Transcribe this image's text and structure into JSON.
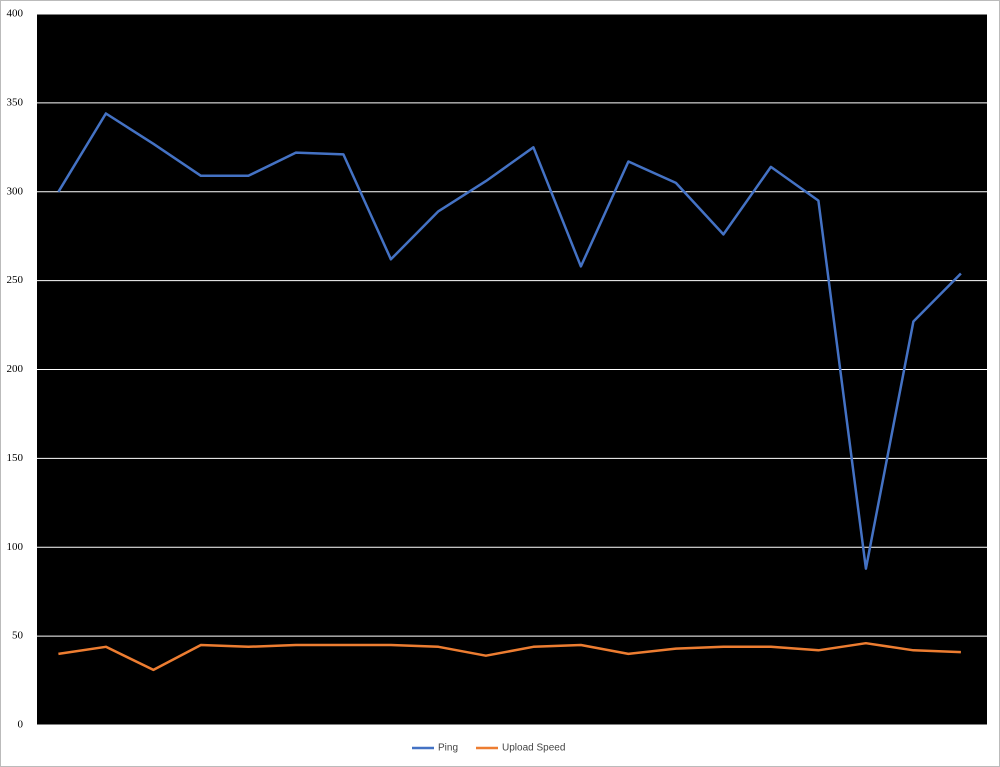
{
  "chart_data": {
    "type": "line",
    "categories": [
      null,
      null,
      null,
      null,
      null,
      null,
      null,
      null,
      null,
      null,
      null,
      null,
      null,
      null,
      null,
      null,
      null,
      null,
      null,
      null
    ],
    "series": [
      {
        "name": "Ping",
        "color": "#4472c4",
        "values": [
          300,
          344,
          327,
          309,
          309,
          322,
          321,
          262,
          289,
          306,
          325,
          258,
          317,
          305,
          276,
          314,
          295,
          88,
          227,
          254
        ]
      },
      {
        "name": "Upload Speed",
        "color": "#ed7d31",
        "values": [
          40,
          44,
          31,
          45,
          44,
          45,
          45,
          45,
          44,
          39,
          44,
          45,
          40,
          43,
          44,
          44,
          42,
          46,
          42,
          41
        ]
      }
    ],
    "ylim": [
      0,
      400
    ],
    "yticks": [
      0,
      50,
      100,
      150,
      200,
      250,
      300,
      350,
      400
    ],
    "grid": true,
    "legend": "bottom"
  }
}
